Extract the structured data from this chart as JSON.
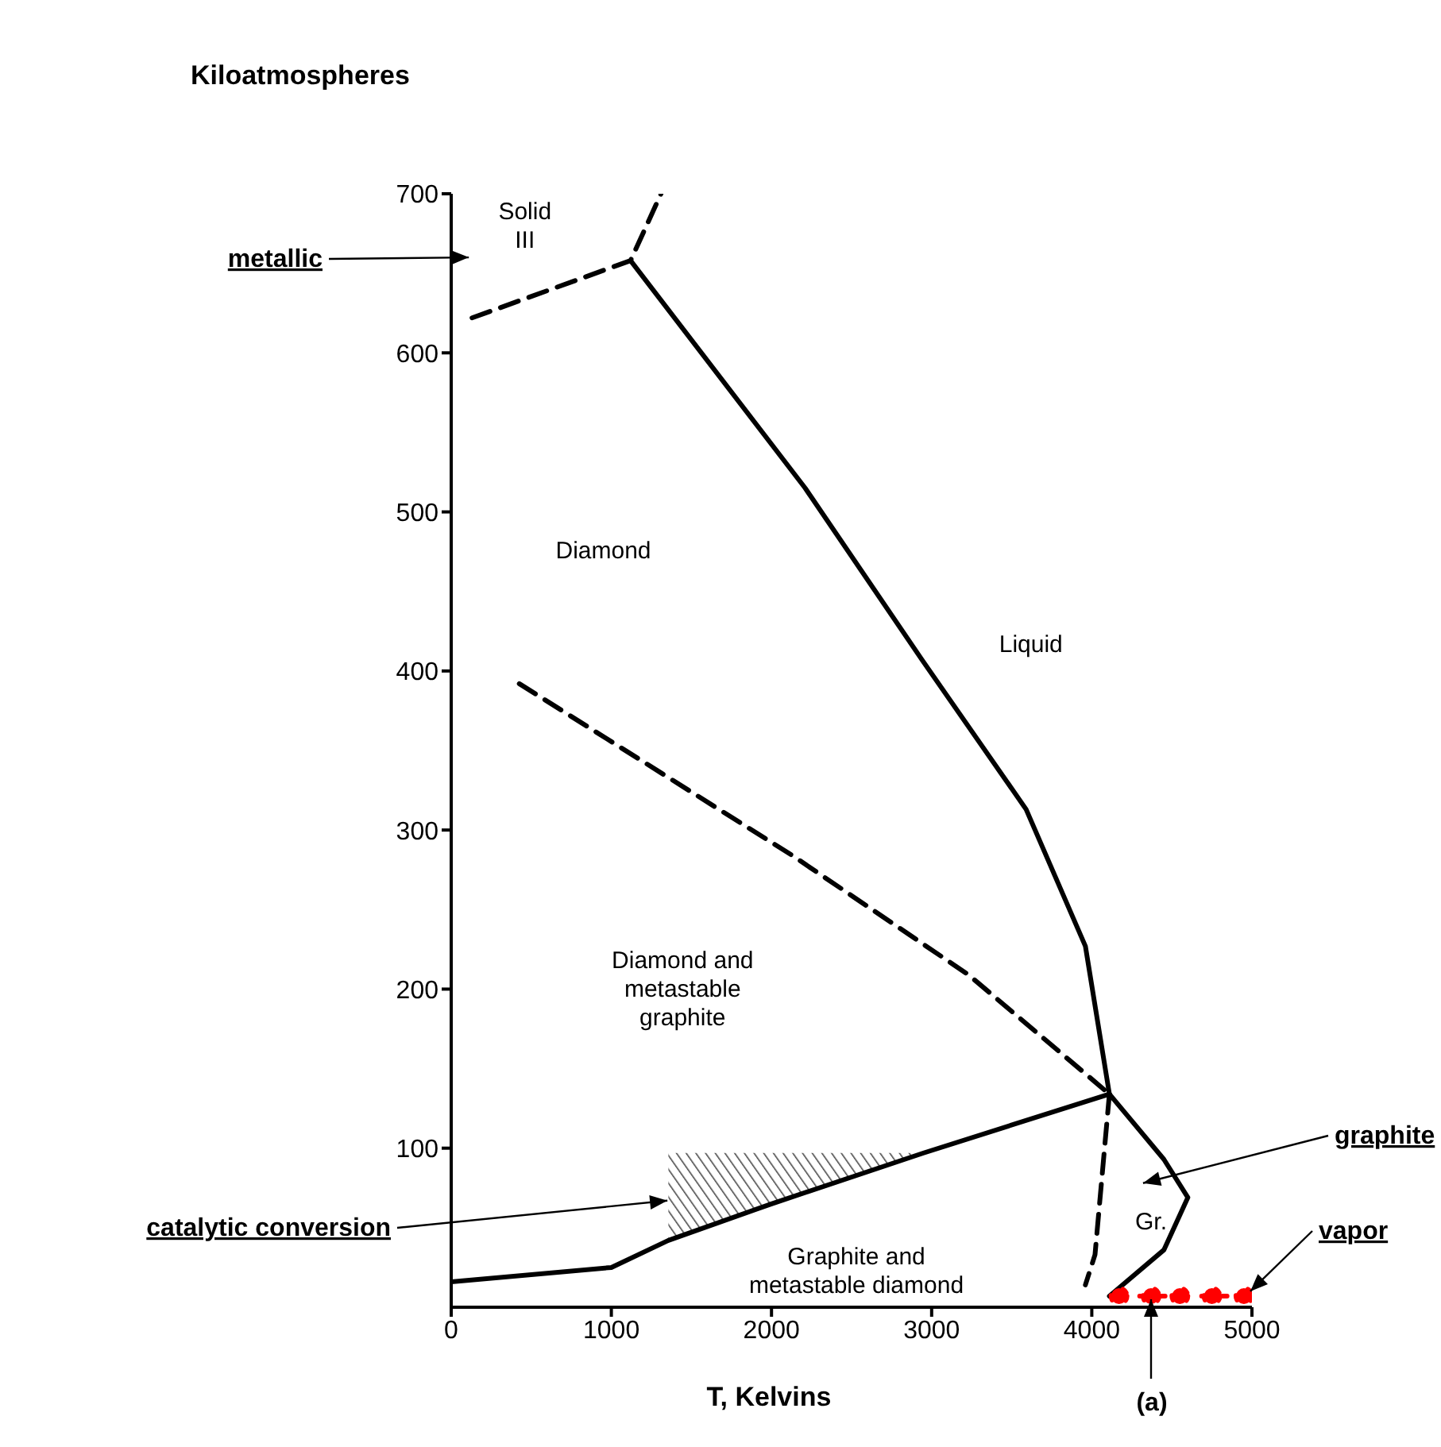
{
  "chart_data": {
    "type": "line",
    "ylabel": "Kiloatmospheres",
    "xlabel": "T, Kelvins",
    "xlim": [
      0,
      5000
    ],
    "xticks": [
      0,
      1000,
      2000,
      3000,
      4000,
      5000
    ],
    "ylim": [
      0,
      700
    ],
    "yticks": [
      100,
      200,
      300,
      400,
      500,
      600,
      700
    ],
    "grid": false,
    "marker": "none",
    "series": [
      {
        "color": "#000000",
        "line_style": "solid",
        "x": [
          0,
          1000,
          1356,
          2000,
          2950,
          4110
        ],
        "values": [
          16,
          25,
          42,
          65,
          97,
          134
        ],
        "lower": [
          null,
          null,
          42,
          65,
          97,
          null
        ],
        "upper": [
          null,
          null,
          97,
          97,
          97,
          null
        ]
      },
      {
        "color": "#000000",
        "line_style": "solid",
        "x": [
          1120,
          2210,
          2940,
          3590,
          3960,
          4110
        ],
        "values": [
          658,
          515,
          407,
          313,
          227,
          134
        ]
      },
      {
        "type": "line",
        "color": "#000000",
        "line_style": "solid",
        "x": [
          4110,
          4450,
          4600,
          4450,
          4110
        ],
        "values": [
          134,
          93,
          69,
          36,
          7
        ]
      },
      {
        "type": "line",
        "color": "#000000",
        "line_style": "dashed",
        "x": [
          425,
          2130,
          3230,
          4110
        ],
        "values": [
          392,
          284,
          209,
          134
        ]
      },
      {
        "type": "line",
        "color": "#000000",
        "line_style": "dashed",
        "x": [
          4110,
          4020,
          3960
        ],
        "values": [
          134,
          33,
          14
        ]
      },
      {
        "type": "line",
        "color": "#000000",
        "line_style": "dashed",
        "x": [
          130,
          1120,
          1310
        ],
        "values": [
          622,
          658,
          700
        ]
      },
      {
        "type": "line",
        "color": "#ff0000",
        "line_style": "dotted",
        "marker": "circle",
        "x": [
          4170,
          4370,
          4550,
          4750,
          4950
        ],
        "values": [
          7,
          7,
          7,
          7,
          7
        ]
      }
    ],
    "annotations": [
      "Solid\nIII",
      "Diamond",
      "Liquid",
      "Diamond and\nmetastable\ngraphite",
      "Graphite and\nmetastable diamond",
      "Gr.",
      "metallic",
      {
        "text": "catalytic conversion",
        "x": 1350,
        "y": 67
      },
      "graphite",
      "vapor",
      {
        "text": "(a)",
        "x": 4370,
        "y": 5
      }
    ]
  }
}
